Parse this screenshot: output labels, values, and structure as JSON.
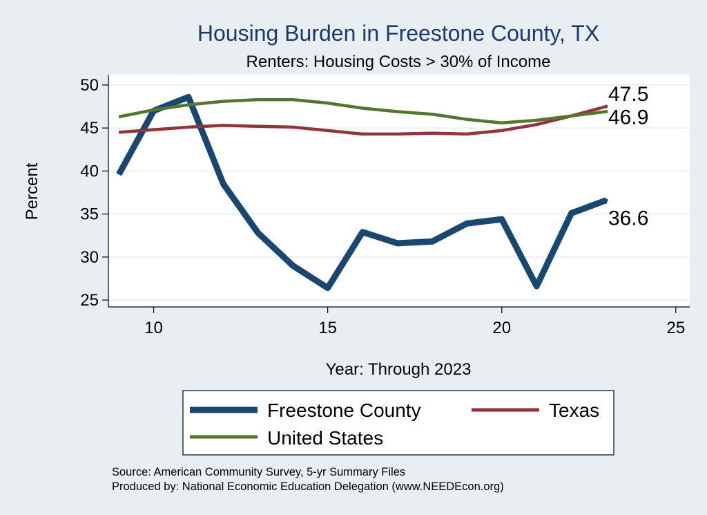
{
  "chart_data": {
    "type": "line",
    "title": "Housing Burden in Freestone County, TX",
    "subtitle": "Renters: Housing Costs > 30% of Income",
    "xlabel": "Year: Through 2023",
    "ylabel": "Percent",
    "xlim": [
      8.7,
      25.4
    ],
    "ylim": [
      24.2,
      51.2
    ],
    "xticks": [
      10,
      15,
      20,
      25
    ],
    "yticks": [
      25,
      30,
      35,
      40,
      45,
      50
    ],
    "grid": true,
    "legend_position": "bottom",
    "series": [
      {
        "name": "Freestone County",
        "color": "#1a476f",
        "width": "thick",
        "end_label": "36.6",
        "x": [
          9,
          10,
          11,
          12,
          13,
          14,
          15,
          16,
          17,
          18,
          19,
          20,
          21,
          22,
          23
        ],
        "values": [
          39.6,
          47.0,
          48.6,
          38.5,
          32.8,
          29.0,
          26.4,
          32.9,
          31.6,
          31.8,
          33.9,
          34.4,
          26.6,
          35.1,
          36.6
        ]
      },
      {
        "name": "Texas",
        "color": "#90353b",
        "width": "medium",
        "end_label": "47.5",
        "x": [
          9,
          10,
          11,
          12,
          13,
          14,
          15,
          16,
          17,
          18,
          19,
          20,
          21,
          22,
          23
        ],
        "values": [
          44.5,
          44.8,
          45.1,
          45.3,
          45.2,
          45.1,
          44.7,
          44.3,
          44.3,
          44.4,
          44.3,
          44.7,
          45.4,
          46.4,
          47.5
        ]
      },
      {
        "name": "United States",
        "color": "#55752f",
        "width": "medium",
        "end_label": "46.9",
        "x": [
          9,
          10,
          11,
          12,
          13,
          14,
          15,
          16,
          17,
          18,
          19,
          20,
          21,
          22,
          23
        ],
        "values": [
          46.3,
          47.1,
          47.7,
          48.1,
          48.3,
          48.3,
          47.9,
          47.3,
          46.9,
          46.6,
          46.0,
          45.6,
          45.9,
          46.4,
          46.9
        ]
      }
    ]
  },
  "source": {
    "line1": "Source: American Community Survey, 5-yr Summary Files",
    "line2": "Produced by: National Economic Education Delegation (www.NEEDEcon.org)"
  }
}
